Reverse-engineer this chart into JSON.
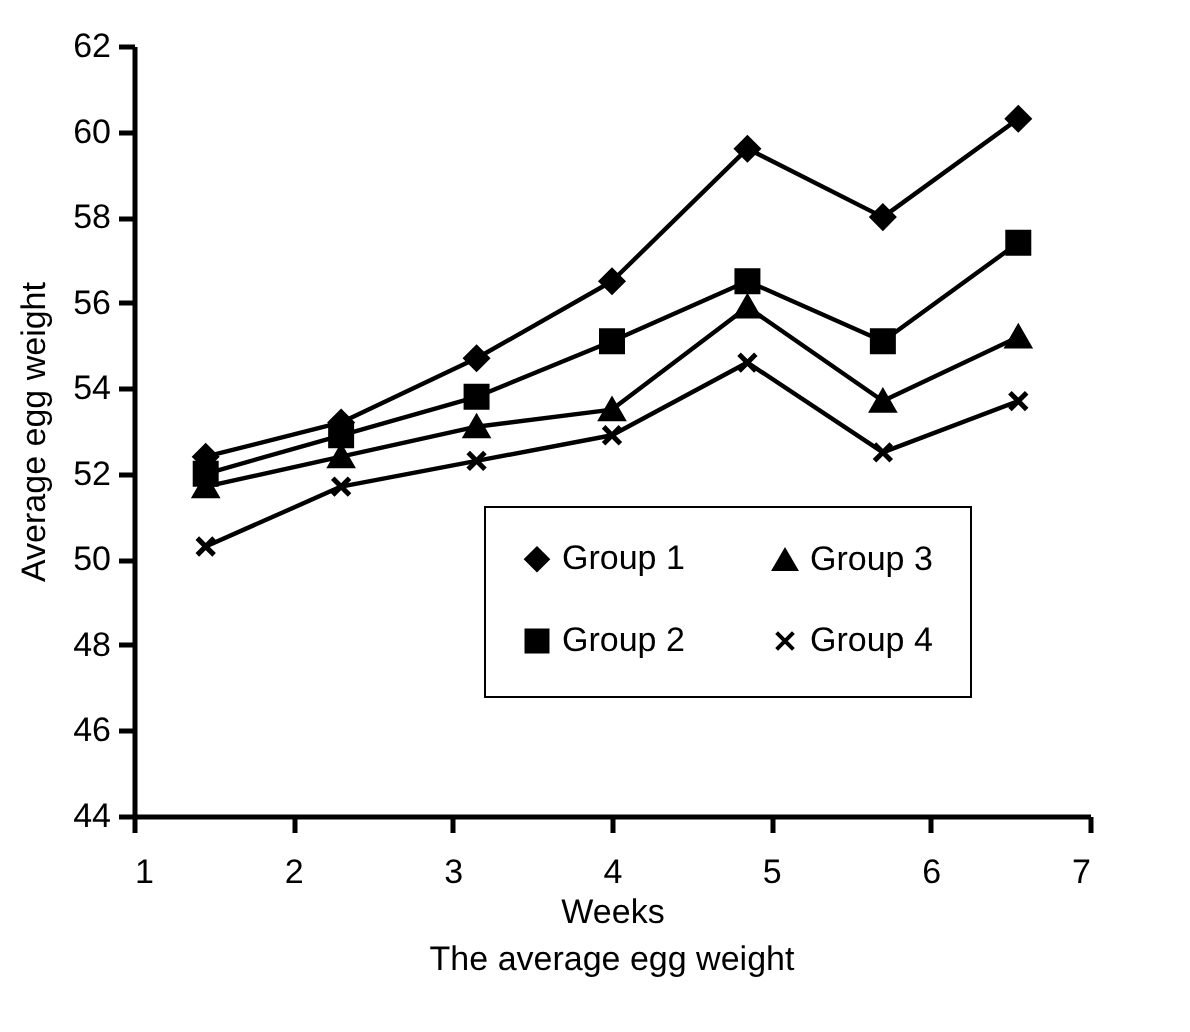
{
  "chart_data": {
    "type": "line",
    "xlabel": "Weeks",
    "ylabel": "Average egg weight",
    "annotations": [
      "The average egg weight"
    ],
    "x": [
      1.45,
      2.3,
      3.15,
      4.0,
      4.85,
      5.7,
      6.55
    ],
    "series": [
      {
        "name": "Group 1",
        "color": "#000000",
        "marker": "diamond",
        "values": [
          52.4,
          53.2,
          54.7,
          56.5,
          59.6,
          58.0,
          60.3
        ]
      },
      {
        "name": "Group 2",
        "color": "#000000",
        "marker": "square",
        "values": [
          52.0,
          52.9,
          53.8,
          55.1,
          56.5,
          55.1,
          57.4
        ]
      },
      {
        "name": "Group 3",
        "color": "#000000",
        "marker": "triangle",
        "values": [
          51.7,
          52.4,
          53.1,
          53.5,
          55.9,
          53.7,
          55.2
        ]
      },
      {
        "name": "Group 4",
        "color": "#000000",
        "marker": "cross",
        "values": [
          50.3,
          51.7,
          52.3,
          52.9,
          54.6,
          52.5,
          53.7
        ]
      }
    ],
    "xlim": [
      1,
      7
    ],
    "xticks": [
      1,
      2,
      3,
      4,
      5,
      6,
      7
    ],
    "ylim": [
      44,
      62
    ],
    "yticks": [
      44,
      46,
      48,
      50,
      52,
      54,
      56,
      58,
      60,
      62
    ],
    "grid": false,
    "legend": "bottom right",
    "line_style": "solid"
  }
}
